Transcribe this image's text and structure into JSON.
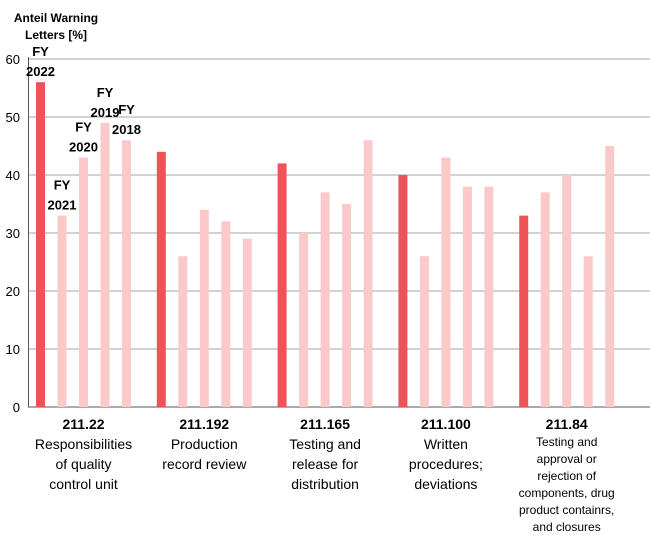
{
  "chart_data": {
    "type": "bar",
    "ylabel": "Anteil Warning Letters [%]",
    "ylim": [
      0,
      60
    ],
    "yticks": [
      0,
      10,
      20,
      30,
      40,
      50,
      60
    ],
    "grid": true,
    "categories": [
      {
        "code": "211.22",
        "label": "Responsibilities of quality control unit",
        "lines": [
          "Responsibilities",
          "of quality",
          "control unit"
        ]
      },
      {
        "code": "211.192",
        "label": "Production record review",
        "lines": [
          "Production",
          "record review"
        ]
      },
      {
        "code": "211.165",
        "label": "Testing and release for distribution",
        "lines": [
          "Testing and",
          "release for",
          "distribution"
        ]
      },
      {
        "code": "211.100",
        "label": "Written procedures; deviations",
        "lines": [
          "Written",
          "procedures;",
          "deviations"
        ]
      },
      {
        "code": "211.84",
        "label": "Testing and approval or rejection of components, drug product containrs, and closures",
        "lines": [
          "Testing and",
          "approval or",
          "rejection of",
          "components, drug",
          "product containrs,",
          "and closures"
        ]
      }
    ],
    "series": [
      {
        "name": "FY 2022",
        "color": "#f05357",
        "values": [
          56,
          44,
          42,
          40,
          33
        ]
      },
      {
        "name": "FY 2021",
        "color": "#fbc9c9",
        "values": [
          33,
          26,
          30,
          26,
          37
        ]
      },
      {
        "name": "FY 2020",
        "color": "#fbc9c9",
        "values": [
          43,
          34,
          37,
          43,
          40
        ]
      },
      {
        "name": "FY 2019",
        "color": "#fbc9c9",
        "values": [
          49,
          32,
          35,
          38,
          26
        ]
      },
      {
        "name": "FY 2018",
        "color": "#fbc9c9",
        "values": [
          46,
          29,
          46,
          38,
          45
        ]
      }
    ],
    "series_labels": [
      {
        "series": 0,
        "lines": [
          "FY",
          "2022"
        ]
      },
      {
        "series": 1,
        "lines": [
          "FY",
          "2021"
        ]
      },
      {
        "series": 2,
        "lines": [
          "FY",
          "2020"
        ]
      },
      {
        "series": 3,
        "lines": [
          "FY",
          "2019"
        ]
      },
      {
        "series": 4,
        "lines": [
          "FY",
          "2018"
        ]
      }
    ]
  }
}
